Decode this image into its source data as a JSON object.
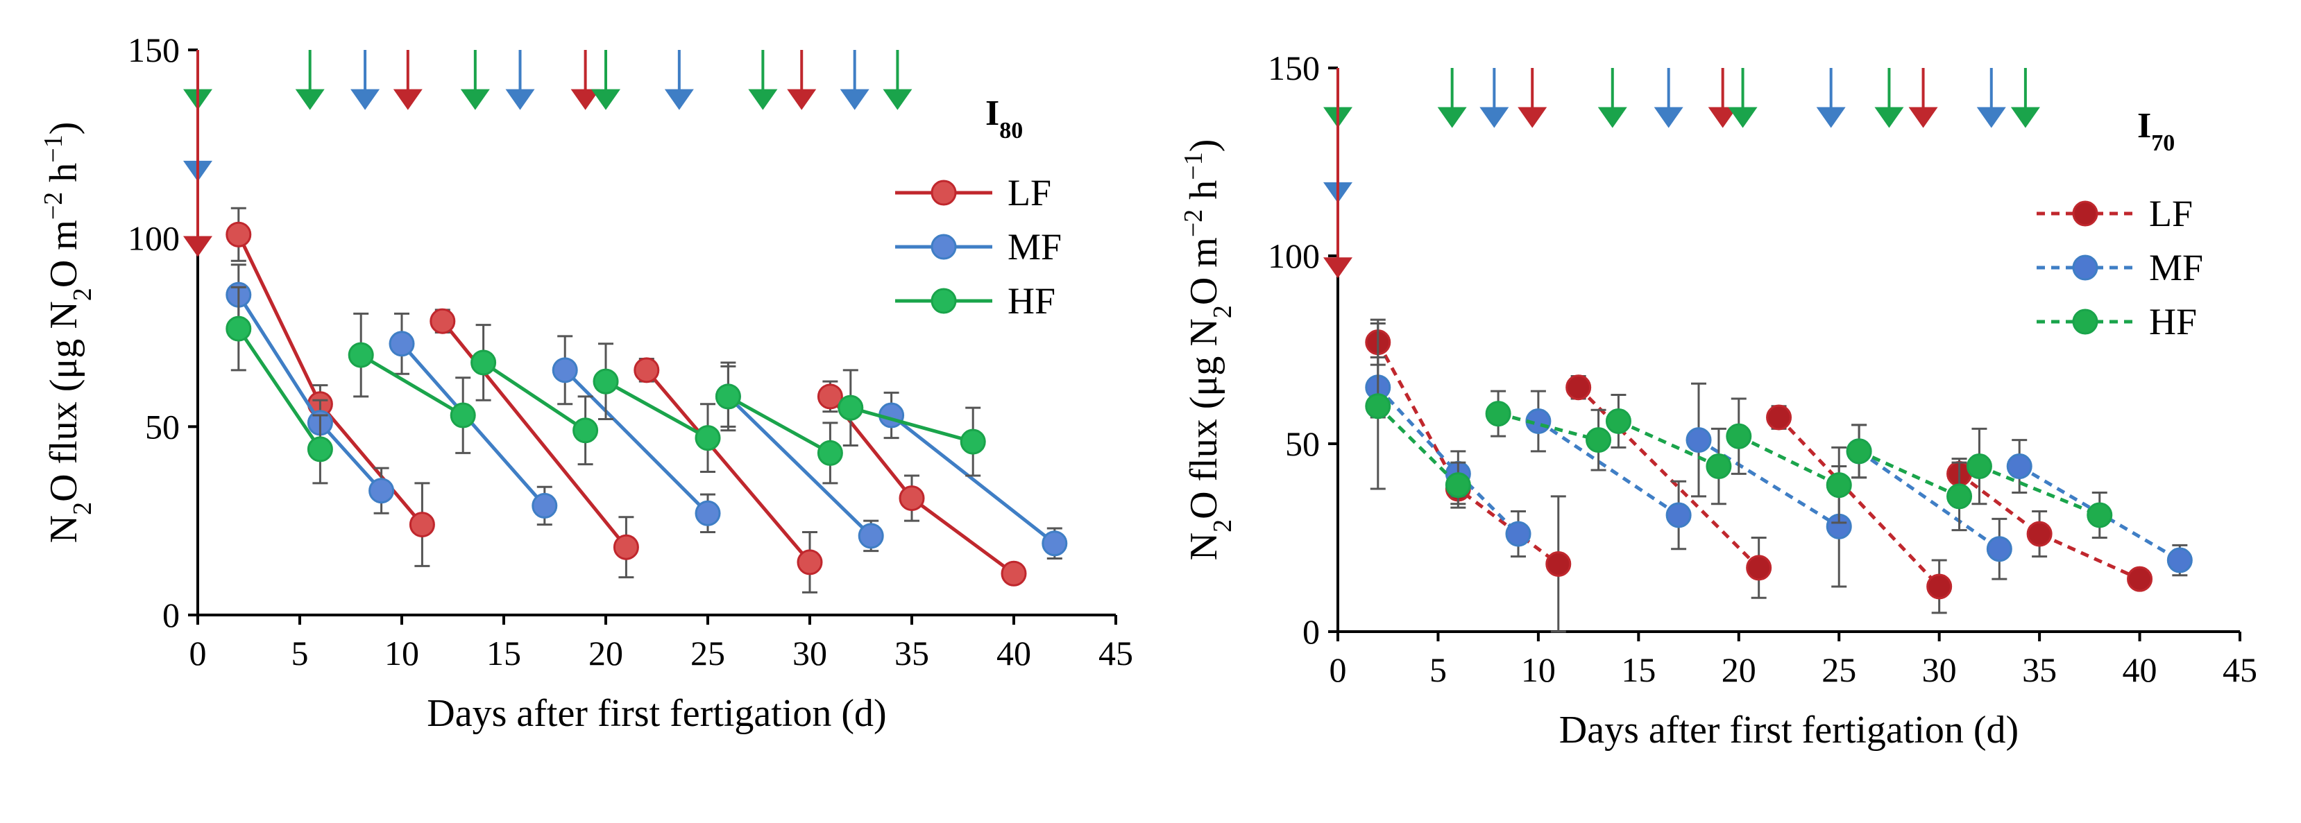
{
  "chart_data": [
    {
      "panel_title": "I",
      "panel_sub": "80",
      "type": "line",
      "line_style": "solid",
      "xlabel": "Days after first fertigation (d)",
      "ylabel": {
        "parts": [
          "N",
          "2",
          "O flux (μg N",
          "2",
          "O m",
          "−2",
          " h",
          "−1",
          ")"
        ],
        "kinds": [
          "n",
          "sub",
          "n",
          "sub",
          "n",
          "sup",
          "n",
          "sup",
          "n"
        ]
      },
      "xlim": [
        0,
        45
      ],
      "ylim": [
        0,
        150
      ],
      "xticks": [
        0,
        5,
        10,
        15,
        20,
        25,
        30,
        35,
        40,
        45
      ],
      "yticks": [
        0,
        50,
        100,
        150
      ],
      "legend": [
        "LF",
        "MF",
        "HF"
      ],
      "series": [
        {
          "name": "LF",
          "color": "#c0272d",
          "fill": "#d85050",
          "points": [
            [
              2,
              101,
              7
            ],
            [
              6,
              56,
              5
            ],
            [
              11,
              24,
              11
            ],
            [
              12,
              78,
              3
            ],
            [
              21,
              18,
              8
            ],
            [
              22,
              65,
              3
            ],
            [
              30,
              14,
              8
            ],
            [
              31,
              58,
              4
            ],
            [
              35,
              31,
              6
            ],
            [
              40,
              11,
              2
            ]
          ],
          "segments": [
            [
              0,
              2
            ],
            [
              3,
              4
            ],
            [
              5,
              6
            ],
            [
              7,
              9
            ]
          ]
        },
        {
          "name": "MF",
          "color": "#3f7ec5",
          "fill": "#5b86d6",
          "points": [
            [
              2,
              85,
              8
            ],
            [
              6,
              51,
              6
            ],
            [
              9,
              33,
              6
            ],
            [
              10,
              72,
              8
            ],
            [
              17,
              29,
              5
            ],
            [
              18,
              65,
              9
            ],
            [
              25,
              27,
              5
            ],
            [
              26,
              58,
              8
            ],
            [
              33,
              21,
              4
            ],
            [
              34,
              53,
              6
            ],
            [
              42,
              19,
              4
            ]
          ],
          "segments": [
            [
              0,
              2
            ],
            [
              3,
              4
            ],
            [
              5,
              6
            ],
            [
              7,
              8
            ],
            [
              9,
              10
            ]
          ]
        },
        {
          "name": "HF",
          "color": "#1aa44b",
          "fill": "#24b85a",
          "points": [
            [
              2,
              76,
              11
            ],
            [
              6,
              44,
              9
            ],
            [
              8,
              69,
              11
            ],
            [
              13,
              53,
              10
            ],
            [
              14,
              67,
              10
            ],
            [
              19,
              49,
              9
            ],
            [
              20,
              62,
              10
            ],
            [
              25,
              47,
              9
            ],
            [
              26,
              58,
              9
            ],
            [
              31,
              43,
              8
            ],
            [
              32,
              55,
              10
            ],
            [
              38,
              46,
              9
            ]
          ],
          "segments": [
            [
              0,
              1
            ],
            [
              2,
              3
            ],
            [
              4,
              5
            ],
            [
              6,
              7
            ],
            [
              8,
              9
            ],
            [
              10,
              11
            ]
          ]
        }
      ],
      "arrows": [
        {
          "day": 0,
          "y": 137,
          "color": "#1aa44b"
        },
        {
          "day": 0,
          "y": 118,
          "color": "#3f7ec5"
        },
        {
          "day": 0,
          "y": 98,
          "color": "#c0272d"
        },
        {
          "day": 5.5,
          "y": 137,
          "color": "#1aa44b"
        },
        {
          "day": 8.2,
          "y": 137,
          "color": "#3f7ec5"
        },
        {
          "day": 10.3,
          "y": 137,
          "color": "#c0272d"
        },
        {
          "day": 13.6,
          "y": 137,
          "color": "#1aa44b"
        },
        {
          "day": 15.8,
          "y": 137,
          "color": "#3f7ec5"
        },
        {
          "day": 19.0,
          "y": 137,
          "color": "#c0272d"
        },
        {
          "day": 20.0,
          "y": 137,
          "color": "#1aa44b"
        },
        {
          "day": 23.6,
          "y": 137,
          "color": "#3f7ec5"
        },
        {
          "day": 27.7,
          "y": 137,
          "color": "#1aa44b"
        },
        {
          "day": 29.6,
          "y": 137,
          "color": "#c0272d"
        },
        {
          "day": 32.2,
          "y": 137,
          "color": "#3f7ec5"
        },
        {
          "day": 34.3,
          "y": 137,
          "color": "#1aa44b"
        }
      ]
    },
    {
      "panel_title": "I",
      "panel_sub": "70",
      "type": "line",
      "line_style": "dashed",
      "xlabel": "Days after first fertigation (d)",
      "ylabel": {
        "parts": [
          "N",
          "2",
          "O flux (μg N",
          "2",
          "O m",
          "−2",
          " h",
          "−1",
          ")"
        ],
        "kinds": [
          "n",
          "sub",
          "n",
          "sub",
          "n",
          "sup",
          "n",
          "sup",
          "n"
        ]
      },
      "xlim": [
        0,
        45
      ],
      "ylim": [
        0,
        150
      ],
      "xticks": [
        0,
        5,
        10,
        15,
        20,
        25,
        30,
        35,
        40,
        45
      ],
      "yticks": [
        0,
        50,
        100,
        150
      ],
      "legend": [
        "LF",
        "MF",
        "HF"
      ],
      "series": [
        {
          "name": "LF",
          "color": "#c0272d",
          "fill": "#b01e24",
          "points": [
            [
              2,
              77,
              6
            ],
            [
              6,
              38,
              4
            ],
            [
              11,
              18,
              18
            ],
            [
              12,
              65,
              3
            ],
            [
              21,
              17,
              8
            ],
            [
              22,
              57,
              3
            ],
            [
              30,
              12,
              7
            ],
            [
              31,
              42,
              4
            ],
            [
              35,
              26,
              6
            ],
            [
              40,
              14,
              2
            ]
          ],
          "segments": [
            [
              0,
              2
            ],
            [
              3,
              4
            ],
            [
              5,
              6
            ],
            [
              7,
              9
            ]
          ]
        },
        {
          "name": "MF",
          "color": "#3f7ec5",
          "fill": "#4c79d0",
          "points": [
            [
              2,
              65,
              8
            ],
            [
              6,
              42,
              6
            ],
            [
              9,
              26,
              6
            ],
            [
              10,
              56,
              8
            ],
            [
              17,
              31,
              9
            ],
            [
              18,
              51,
              15
            ],
            [
              25,
              28,
              16
            ],
            [
              26,
              48,
              7
            ],
            [
              33,
              22,
              8
            ],
            [
              34,
              44,
              7
            ],
            [
              42,
              19,
              4
            ]
          ],
          "segments": [
            [
              0,
              2
            ],
            [
              3,
              4
            ],
            [
              5,
              6
            ],
            [
              7,
              8
            ],
            [
              9,
              10
            ]
          ]
        },
        {
          "name": "HF",
          "color": "#1aa44b",
          "fill": "#1fad4d",
          "points": [
            [
              2,
              60,
              22
            ],
            [
              6,
              39,
              6
            ],
            [
              8,
              58,
              6
            ],
            [
              13,
              51,
              8
            ],
            [
              14,
              56,
              7
            ],
            [
              19,
              44,
              10
            ],
            [
              20,
              52,
              10
            ],
            [
              25,
              39,
              10
            ],
            [
              26,
              48,
              7
            ],
            [
              31,
              36,
              9
            ],
            [
              32,
              44,
              10
            ],
            [
              38,
              31,
              6
            ]
          ],
          "segments": [
            [
              0,
              1
            ],
            [
              2,
              3
            ],
            [
              4,
              5
            ],
            [
              6,
              7
            ],
            [
              8,
              9
            ],
            [
              10,
              11
            ]
          ]
        }
      ],
      "arrows": [
        {
          "day": 0,
          "y": 137,
          "color": "#1aa44b"
        },
        {
          "day": 0,
          "y": 117,
          "color": "#3f7ec5"
        },
        {
          "day": 0,
          "y": 97,
          "color": "#c0272d"
        },
        {
          "day": 5.7,
          "y": 137,
          "color": "#1aa44b"
        },
        {
          "day": 7.8,
          "y": 137,
          "color": "#3f7ec5"
        },
        {
          "day": 9.7,
          "y": 137,
          "color": "#c0272d"
        },
        {
          "day": 13.7,
          "y": 137,
          "color": "#1aa44b"
        },
        {
          "day": 16.5,
          "y": 137,
          "color": "#3f7ec5"
        },
        {
          "day": 19.2,
          "y": 137,
          "color": "#c0272d"
        },
        {
          "day": 20.2,
          "y": 137,
          "color": "#1aa44b"
        },
        {
          "day": 24.6,
          "y": 137,
          "color": "#3f7ec5"
        },
        {
          "day": 27.5,
          "y": 137,
          "color": "#1aa44b"
        },
        {
          "day": 29.2,
          "y": 137,
          "color": "#c0272d"
        },
        {
          "day": 32.6,
          "y": 137,
          "color": "#3f7ec5"
        },
        {
          "day": 34.3,
          "y": 137,
          "color": "#1aa44b"
        }
      ]
    }
  ]
}
